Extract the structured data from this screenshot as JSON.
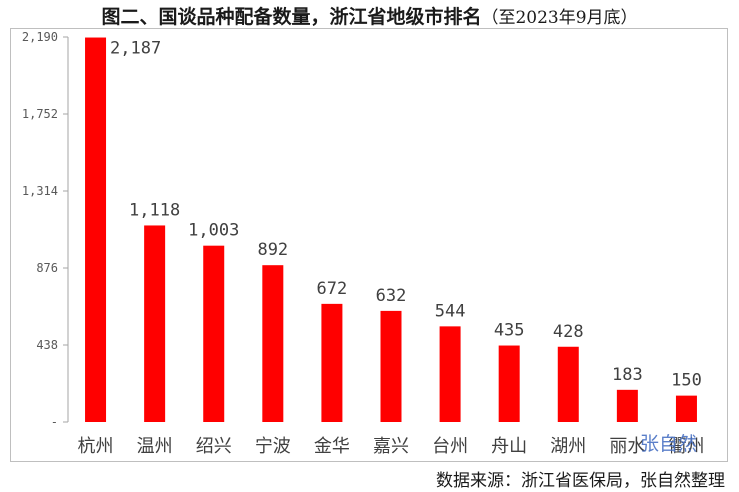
{
  "title_main": "图二、国谈品种配备数量，浙江省地级市排名",
  "title_sub": "（至2023年9月底）",
  "source": "数据来源：浙江省医保局，张自然整理",
  "watermark": "张自然",
  "bar_color": "#ff0000",
  "chart_data": {
    "type": "bar",
    "title": "图二、国谈品种配备数量，浙江省地级市排名（至2023年9月底）",
    "categories": [
      "杭州",
      "温州",
      "绍兴",
      "宁波",
      "金华",
      "嘉兴",
      "台州",
      "舟山",
      "湖州",
      "丽水",
      "衢州"
    ],
    "values": [
      2187,
      1118,
      1003,
      892,
      672,
      632,
      544,
      435,
      428,
      183,
      150
    ],
    "value_labels": [
      "2,187",
      "1,118",
      "1,003",
      "892",
      "672",
      "632",
      "544",
      "435",
      "428",
      "183",
      "150"
    ],
    "yticks": [
      0,
      438,
      876,
      1314,
      1752,
      2190
    ],
    "ytick_labels": [
      "-",
      "438",
      "876",
      "1,314",
      "1,752",
      "2,190"
    ],
    "ylim": [
      0,
      2190
    ],
    "grid": false,
    "legend": "none"
  }
}
